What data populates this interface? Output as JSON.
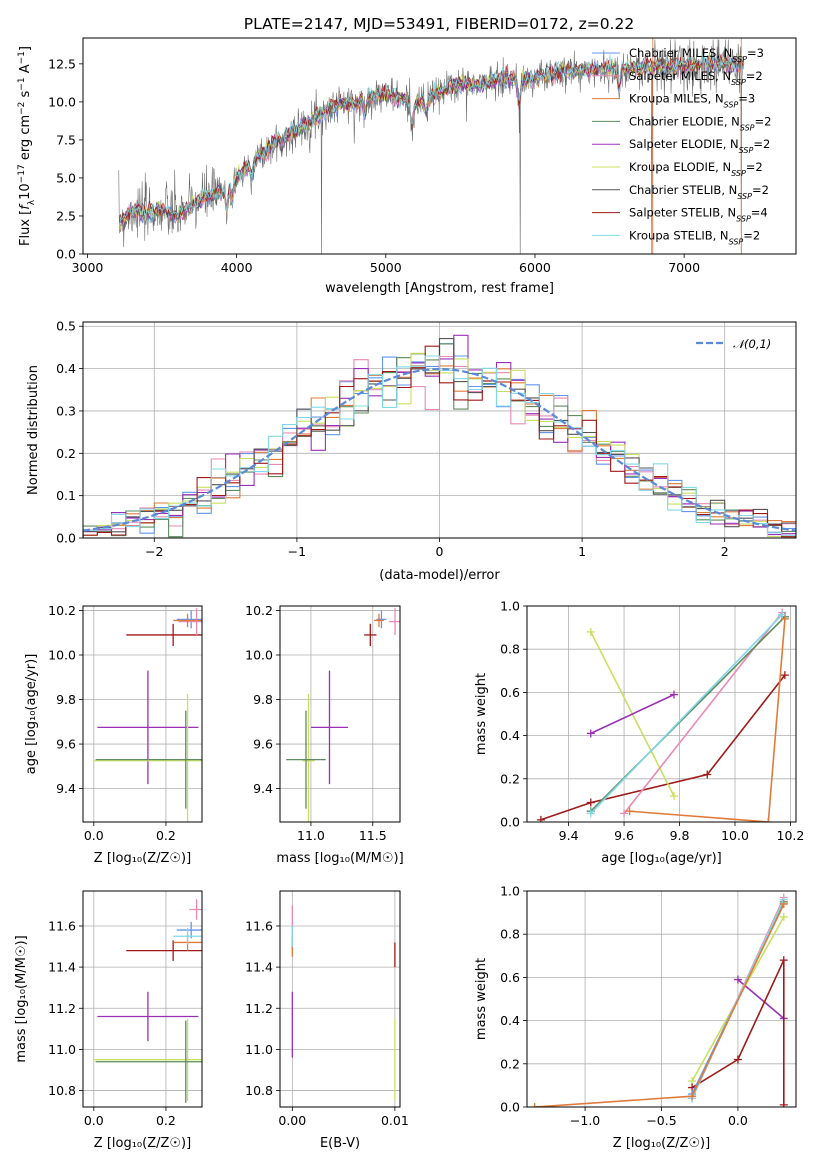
{
  "colors": {
    "Chabrier MILES": "#6495ed",
    "Salpeter MILES": "#e98ab5",
    "Kroupa MILES": "#e07b39",
    "Chabrier ELODIE": "#5e8c5e",
    "Salpeter ELODIE": "#9b30b8",
    "Kroupa ELODIE": "#c8e060",
    "Chabrier STELIB": "#555555",
    "Salpeter STELIB": "#a01919",
    "Kroupa STELIB": "#80d8e8",
    "normal": "#5a8ad8"
  },
  "chart_data": [
    {
      "id": "spectrum",
      "type": "line",
      "title": "PLATE=2147, MJD=53491, FIBERID=0172, z=0.22",
      "xlabel": "wavelength [Angstrom, rest frame]",
      "ylabel_parts": [
        "Flux [",
        "f",
        "λ",
        "10",
        "−17",
        " erg cm",
        "−2",
        " s",
        "−1",
        " A",
        "−1",
        "]"
      ],
      "xlim": [
        2970,
        7750
      ],
      "ylim": [
        0,
        14.2
      ],
      "xticks": [
        3000,
        4000,
        5000,
        6000,
        7000
      ],
      "yticks": [
        0.0,
        2.5,
        5.0,
        7.5,
        10.0,
        12.5
      ],
      "continuum": {
        "x": [
          3210,
          3300,
          3400,
          3500,
          3600,
          3700,
          3800,
          3900,
          4000,
          4100,
          4200,
          4300,
          4400,
          4500,
          4600,
          4700,
          4800,
          4900,
          5000,
          5100,
          5200,
          5300,
          5400,
          5500,
          5600,
          5700,
          5800,
          5900,
          6000,
          6200,
          6400,
          6600,
          6800,
          7000,
          7200,
          7400
        ],
        "y": [
          2.0,
          2.8,
          2.7,
          2.9,
          2.5,
          3.2,
          3.8,
          4.0,
          5.0,
          6.0,
          6.8,
          7.8,
          8.0,
          8.8,
          9.4,
          10.0,
          9.8,
          10.4,
          10.5,
          10.2,
          9.9,
          10.3,
          10.8,
          11.2,
          11.0,
          11.3,
          11.6,
          11.4,
          11.6,
          12.0,
          12.1,
          12.2,
          12.3,
          12.4,
          12.5,
          12.5
        ]
      },
      "series": [
        {
          "name": "Chabrier MILES",
          "nssp": "3"
        },
        {
          "name": "Salpeter MILES",
          "nssp": "2"
        },
        {
          "name": "Kroupa MILES",
          "nssp": "3"
        },
        {
          "name": "Chabrier ELODIE",
          "nssp": "2"
        },
        {
          "name": "Salpeter ELODIE",
          "nssp": "2"
        },
        {
          "name": "Kroupa ELODIE",
          "nssp": "2"
        },
        {
          "name": "Chabrier STELIB",
          "nssp": "2"
        },
        {
          "name": "Salpeter STELIB",
          "nssp": "4"
        },
        {
          "name": "Kroupa STELIB",
          "nssp": "2"
        }
      ]
    },
    {
      "id": "residuals",
      "type": "histogram",
      "xlabel": "(data-model)/error",
      "ylabel": "Normed distribution",
      "xlim": [
        -2.5,
        2.5
      ],
      "ylim": [
        0,
        0.51
      ],
      "xticks": [
        -2,
        -1,
        0,
        1,
        2
      ],
      "xticklabels": [
        "−2",
        "−1",
        "0",
        "1",
        "2"
      ],
      "yticks": [
        0.0,
        0.1,
        0.2,
        0.3,
        0.4,
        0.5
      ],
      "bin_width": 0.1,
      "bin_start": -2.5,
      "legend": "𝒩(0,1)",
      "legend_loc": "upper right"
    },
    {
      "id": "age-vs-Z",
      "type": "errorbar",
      "xlabel": "Z [log₁₀(Z/Z☉)]",
      "ylabel": "age  [log₁₀(age/yr)]",
      "xlim": [
        -0.03,
        0.3
      ],
      "ylim": [
        9.25,
        10.22
      ],
      "xticks": [
        0.0,
        0.2
      ],
      "yticks": [
        9.4,
        9.6,
        9.8,
        10.0,
        10.2
      ],
      "points": [
        {
          "s": "Salpeter ELODIE",
          "x": 0.15,
          "xe": 0.14,
          "y": 9.675,
          "ye": 0.255
        },
        {
          "s": "Kroupa ELODIE",
          "x": 0.26,
          "xe": 0.26,
          "y": 9.525,
          "ye": 0.3
        },
        {
          "s": "Chabrier ELODIE",
          "x": 0.255,
          "xe": 0.25,
          "y": 9.53,
          "ye": 0.22
        },
        {
          "s": "Salpeter STELIB",
          "x": 0.22,
          "xe": 0.13,
          "y": 10.09,
          "ye": 0.05
        },
        {
          "s": "Chabrier MILES",
          "x": 0.27,
          "xe": 0.04,
          "y": 10.16,
          "ye": 0.04
        },
        {
          "s": "Salpeter MILES",
          "x": 0.285,
          "xe": 0.05,
          "y": 10.15,
          "ye": 0.06
        },
        {
          "s": "Kroupa MILES",
          "x": 0.26,
          "xe": 0.04,
          "y": 10.155,
          "ye": 0.03
        }
      ]
    },
    {
      "id": "age-vs-mass",
      "type": "errorbar",
      "xlabel": "mass [log₁₀(M/M☉)]",
      "xlim": [
        10.75,
        11.72
      ],
      "ylim": [
        9.25,
        10.22
      ],
      "xticks": [
        11.0,
        11.5
      ],
      "yticks": [
        9.4,
        9.6,
        9.8,
        10.0,
        10.2
      ],
      "points": [
        {
          "s": "Salpeter ELODIE",
          "x": 11.15,
          "xe": 0.15,
          "y": 9.675,
          "ye": 0.255
        },
        {
          "s": "Kroupa ELODIE",
          "x": 10.98,
          "xe": 0.05,
          "y": 9.525,
          "ye": 0.3
        },
        {
          "s": "Chabrier ELODIE",
          "x": 10.96,
          "xe": 0.16,
          "y": 9.53,
          "ye": 0.22
        },
        {
          "s": "Salpeter STELIB",
          "x": 11.48,
          "xe": 0.05,
          "y": 10.09,
          "ye": 0.05
        },
        {
          "s": "Chabrier MILES",
          "x": 11.57,
          "xe": 0.04,
          "y": 10.16,
          "ye": 0.04
        },
        {
          "s": "Salpeter MILES",
          "x": 11.68,
          "xe": 0.05,
          "y": 10.15,
          "ye": 0.06
        },
        {
          "s": "Kroupa MILES",
          "x": 11.55,
          "xe": 0.04,
          "y": 10.155,
          "ye": 0.03
        }
      ]
    },
    {
      "id": "weight-vs-age",
      "type": "line",
      "xlabel": "age  [log₁₀(age/yr)]",
      "ylabel": "mass weight",
      "xlim": [
        9.25,
        10.22
      ],
      "ylim": [
        0,
        1.0
      ],
      "xticks": [
        9.4,
        9.6,
        9.8,
        10.0,
        10.2
      ],
      "yticks": [
        0.0,
        0.2,
        0.4,
        0.6,
        0.8,
        1.0
      ],
      "series": [
        {
          "s": "Salpeter STELIB",
          "x": [
            9.3,
            9.48,
            9.9,
            10.18
          ],
          "y": [
            0.01,
            0.09,
            0.22,
            0.68
          ]
        },
        {
          "s": "Kroupa ELODIE",
          "x": [
            9.48,
            9.78
          ],
          "y": [
            0.88,
            0.12
          ]
        },
        {
          "s": "Salpeter ELODIE",
          "x": [
            9.48,
            9.78
          ],
          "y": [
            0.41,
            0.59
          ]
        },
        {
          "s": "Salpeter MILES",
          "x": [
            9.6,
            10.17
          ],
          "y": [
            0.04,
            0.97
          ]
        },
        {
          "s": "Chabrier ELODIE",
          "x": [
            9.48,
            10.18
          ],
          "y": [
            0.05,
            0.95
          ]
        },
        {
          "s": "Kroupa STELIB",
          "x": [
            9.48,
            10.17
          ],
          "y": [
            0.04,
            0.96
          ]
        },
        {
          "s": "Kroupa MILES",
          "x": [
            9.62,
            10.12,
            10.18
          ],
          "y": [
            0.05,
            0.0,
            0.94
          ]
        }
      ]
    },
    {
      "id": "mass-vs-Z",
      "type": "errorbar",
      "xlabel": "Z [log₁₀(Z/Z☉)]",
      "ylabel": "mass [log₁₀(M/M☉)]",
      "xlim": [
        -0.03,
        0.3
      ],
      "ylim": [
        10.72,
        11.77
      ],
      "xticks": [
        0.0,
        0.2
      ],
      "yticks": [
        10.8,
        11.0,
        11.2,
        11.4,
        11.6
      ],
      "points": [
        {
          "s": "Salpeter ELODIE",
          "x": 0.15,
          "xe": 0.14,
          "y": 11.16,
          "ye": 0.12
        },
        {
          "s": "Kroupa ELODIE",
          "x": 0.26,
          "xe": 0.26,
          "y": 10.95,
          "ye": 0.2
        },
        {
          "s": "Chabrier ELODIE",
          "x": 0.255,
          "xe": 0.25,
          "y": 10.94,
          "ye": 0.2
        },
        {
          "s": "Salpeter STELIB",
          "x": 0.22,
          "xe": 0.13,
          "y": 11.48,
          "ye": 0.05
        },
        {
          "s": "Chabrier MILES",
          "x": 0.27,
          "xe": 0.04,
          "y": 11.58,
          "ye": 0.04
        },
        {
          "s": "Salpeter MILES",
          "x": 0.285,
          "xe": 0.02,
          "y": 11.68,
          "ye": 0.05
        },
        {
          "s": "Kroupa MILES",
          "x": 0.26,
          "xe": 0.04,
          "y": 11.52,
          "ye": 0.04
        },
        {
          "s": "Kroupa STELIB",
          "x": 0.26,
          "xe": 0.04,
          "y": 11.55,
          "ye": 0.04
        }
      ]
    },
    {
      "id": "mass-vs-EBV",
      "type": "errorbar",
      "xlabel": "E(B-V)",
      "xlim": [
        -0.0012,
        0.0105
      ],
      "ylim": [
        10.72,
        11.77
      ],
      "xticks": [
        0.0,
        0.01
      ],
      "xticklabels": [
        "0.00",
        "0.01"
      ],
      "yticks": [
        10.8,
        11.0,
        11.2,
        11.4,
        11.6
      ],
      "points": [
        {
          "s": "Salpeter ELODIE",
          "x": 0.0,
          "xe": 0,
          "y": 11.12,
          "ye": 0.16
        },
        {
          "s": "Salpeter MILES",
          "x": 0.0,
          "xe": 0,
          "y": 11.6,
          "ye": 0.1
        },
        {
          "s": "Kroupa MILES",
          "x": 0.0,
          "xe": 0,
          "y": 11.5,
          "ye": 0.05
        },
        {
          "s": "Kroupa STELIB",
          "x": 0.0,
          "xe": 0,
          "y": 11.55,
          "ye": 0.05
        },
        {
          "s": "Kroupa ELODIE",
          "x": 0.01,
          "xe": 0,
          "y": 10.95,
          "ye": 0.2
        },
        {
          "s": "Salpeter STELIB",
          "x": 0.01,
          "xe": 0,
          "y": 11.46,
          "ye": 0.06
        }
      ]
    },
    {
      "id": "weight-vs-Z",
      "type": "line",
      "xlabel": "Z [log₁₀(Z/Z☉)]",
      "ylabel": "mass weight",
      "xlim": [
        -1.38,
        0.38
      ],
      "ylim": [
        0,
        1.0
      ],
      "xticks": [
        -1.0,
        -0.5,
        0.0
      ],
      "xticklabels": [
        "−1.0",
        "−0.5",
        "0.0"
      ],
      "yticks": [
        0.0,
        0.2,
        0.4,
        0.6,
        0.8,
        1.0
      ],
      "series": [
        {
          "s": "Kroupa ELODIE",
          "x": [
            -0.3,
            0.3
          ],
          "y": [
            0.12,
            0.88
          ]
        },
        {
          "s": "Chabrier ELODIE",
          "x": [
            -0.3,
            0.3
          ],
          "y": [
            0.05,
            0.95
          ]
        },
        {
          "s": "Salpeter ELODIE",
          "x": [
            0.0,
            0.3
          ],
          "y": [
            0.59,
            0.41
          ]
        },
        {
          "s": "Salpeter STELIB",
          "x": [
            -0.3,
            0.0,
            0.3,
            0.3
          ],
          "y": [
            0.09,
            0.22,
            0.68,
            0.01
          ]
        },
        {
          "s": "Salpeter MILES",
          "x": [
            -0.3,
            0.3
          ],
          "y": [
            0.04,
            0.97
          ]
        },
        {
          "s": "Chabrier MILES",
          "x": [
            -0.3,
            0.3
          ],
          "y": [
            0.06,
            0.94
          ]
        },
        {
          "s": "Kroupa STELIB",
          "x": [
            -0.3,
            0.3
          ],
          "y": [
            0.04,
            0.96
          ]
        },
        {
          "s": "Kroupa MILES",
          "x": [
            -1.33,
            -0.3,
            0.3
          ],
          "y": [
            0.0,
            0.05,
            0.94
          ]
        }
      ]
    }
  ]
}
